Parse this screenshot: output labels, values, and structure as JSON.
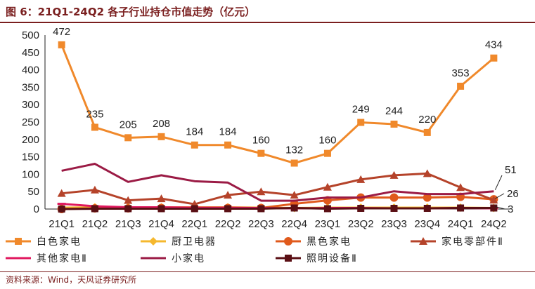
{
  "title": "图 6：21Q1-24Q2 各子行业持仓市值走势（亿元）",
  "source": "资料来源：Wind，天风证券研究所",
  "chart_data": {
    "type": "line",
    "categories": [
      "21Q1",
      "21Q2",
      "21Q3",
      "21Q4",
      "22Q1",
      "22Q2",
      "22Q3",
      "22Q4",
      "23Q1",
      "23Q2",
      "23Q3",
      "23Q4",
      "24Q1",
      "24Q2"
    ],
    "ylim": [
      0,
      500
    ],
    "yticks": [
      0,
      50,
      100,
      150,
      200,
      250,
      300,
      350,
      400,
      450,
      500
    ],
    "legend_position": "bottom",
    "series": [
      {
        "name": "白色家电",
        "color": "#f0892b",
        "marker": "square",
        "values": [
          472,
          235,
          205,
          208,
          184,
          184,
          160,
          132,
          160,
          249,
          244,
          220,
          353,
          434
        ]
      },
      {
        "name": "厨卫电器",
        "color": "#f5b82e",
        "marker": "diamond",
        "values": [
          4,
          5,
          5,
          5,
          5,
          5,
          4,
          3,
          4,
          4,
          4,
          4,
          4,
          3
        ]
      },
      {
        "name": "黑色家电",
        "color": "#e05a1c",
        "marker": "circle",
        "values": [
          0,
          2,
          2,
          3,
          3,
          3,
          3,
          15,
          25,
          33,
          33,
          33,
          35,
          28
        ]
      },
      {
        "name": "家电零部件Ⅱ",
        "color": "#b5432a",
        "marker": "triangle",
        "values": [
          45,
          55,
          25,
          30,
          14,
          40,
          50,
          40,
          63,
          85,
          97,
          102,
          62,
          26
        ]
      },
      {
        "name": "其他家电Ⅱ",
        "color": "#e0185e",
        "marker": "dash",
        "values": [
          15,
          8,
          5,
          5,
          4,
          4,
          3,
          2,
          3,
          3,
          2,
          2,
          3,
          2
        ]
      },
      {
        "name": "小家电",
        "color": "#9b1b45",
        "marker": "line",
        "values": [
          110,
          130,
          78,
          97,
          80,
          76,
          24,
          24,
          33,
          33,
          51,
          43,
          43,
          51
        ]
      },
      {
        "name": "照明设备Ⅱ",
        "color": "#5a0f14",
        "marker": "square-dark",
        "values": [
          0,
          1,
          1,
          1,
          1,
          1,
          1,
          3,
          1,
          2,
          2,
          2,
          3,
          3
        ]
      }
    ],
    "data_labels": {
      "series_index": 0,
      "values": [
        "472",
        "235",
        "205",
        "208",
        "184",
        "184",
        "160",
        "132",
        "160",
        "249",
        "244",
        "220",
        "353",
        "434"
      ]
    },
    "end_callouts": [
      "51",
      "26",
      "3"
    ]
  }
}
